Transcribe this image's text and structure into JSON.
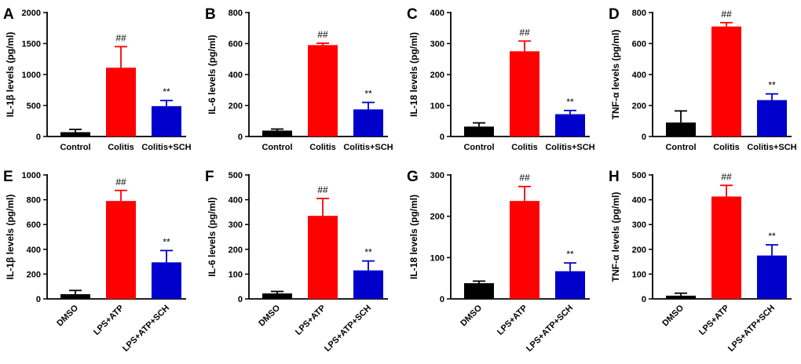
{
  "chart_data": [
    {
      "panel": "A",
      "type": "bar",
      "ylabel": "IL-1β levels (pg/ml)",
      "ylim": [
        0,
        2000
      ],
      "yticks": [
        "0",
        "500",
        "1000",
        "1500",
        "2000"
      ],
      "categories": [
        "Control",
        "Colitis",
        "Colitis+SCH"
      ],
      "values": [
        70,
        1110,
        490
      ],
      "errors": [
        45,
        340,
        90
      ],
      "annotations": [
        "",
        "##",
        "**"
      ],
      "colors": [
        "#000000",
        "#ff0000",
        "#0000cc"
      ],
      "rotate_labels": false
    },
    {
      "panel": "B",
      "type": "bar",
      "ylabel": "IL-6 levels (pg/ml)",
      "ylim": [
        0,
        800
      ],
      "yticks": [
        "0",
        "200",
        "400",
        "600",
        "800"
      ],
      "categories": [
        "Control",
        "Colitis",
        "Colitis+SCH"
      ],
      "values": [
        38,
        590,
        175
      ],
      "errors": [
        10,
        12,
        45
      ],
      "annotations": [
        "",
        "##",
        "**"
      ],
      "colors": [
        "#000000",
        "#ff0000",
        "#0000cc"
      ],
      "rotate_labels": false
    },
    {
      "panel": "C",
      "type": "bar",
      "ylabel": "IL-18 levels (pg/ml)",
      "ylim": [
        0,
        400
      ],
      "yticks": [
        "0",
        "100",
        "200",
        "300",
        "400"
      ],
      "categories": [
        "Control",
        "Colitis",
        "Colitis+SCH"
      ],
      "values": [
        32,
        275,
        72
      ],
      "errors": [
        12,
        33,
        12
      ],
      "annotations": [
        "",
        "##",
        "**"
      ],
      "colors": [
        "#000000",
        "#ff0000",
        "#0000cc"
      ],
      "rotate_labels": false
    },
    {
      "panel": "D",
      "type": "bar",
      "ylabel": "TNF-α levels (pg/ml)",
      "ylim": [
        0,
        800
      ],
      "yticks": [
        "0",
        "200",
        "400",
        "600",
        "800"
      ],
      "categories": [
        "Control",
        "Colitis",
        "Colitis+SCH"
      ],
      "values": [
        90,
        710,
        235
      ],
      "errors": [
        75,
        25,
        40
      ],
      "annotations": [
        "",
        "##",
        "**"
      ],
      "colors": [
        "#000000",
        "#ff0000",
        "#0000cc"
      ],
      "rotate_labels": false
    },
    {
      "panel": "E",
      "type": "bar",
      "ylabel": "IL-1β levels (pg/ml)",
      "ylim": [
        0,
        1000
      ],
      "yticks": [
        "0",
        "200",
        "400",
        "600",
        "800",
        "1000"
      ],
      "categories": [
        "DMSO",
        "LPS+ATP",
        "LPS+ATP+SCH"
      ],
      "values": [
        38,
        790,
        295
      ],
      "errors": [
        30,
        85,
        95
      ],
      "annotations": [
        "",
        "##",
        "**"
      ],
      "colors": [
        "#000000",
        "#ff0000",
        "#0000cc"
      ],
      "rotate_labels": true
    },
    {
      "panel": "F",
      "type": "bar",
      "ylabel": "IL-6 levels (pg/ml)",
      "ylim": [
        0,
        500
      ],
      "yticks": [
        "0",
        "100",
        "200",
        "300",
        "400",
        "500"
      ],
      "categories": [
        "DMSO",
        "LPS+ATP",
        "LPS+ATP+SCH"
      ],
      "values": [
        22,
        335,
        115
      ],
      "errors": [
        8,
        70,
        38
      ],
      "annotations": [
        "",
        "##",
        "**"
      ],
      "colors": [
        "#000000",
        "#ff0000",
        "#0000cc"
      ],
      "rotate_labels": true
    },
    {
      "panel": "G",
      "type": "bar",
      "ylabel": "IL-18 levels (pg/ml)",
      "ylim": [
        0,
        300
      ],
      "yticks": [
        "0",
        "100",
        "200",
        "300"
      ],
      "categories": [
        "DMSO",
        "LPS+ATP",
        "LPS+ATP+SCH"
      ],
      "values": [
        38,
        237,
        67
      ],
      "errors": [
        5,
        35,
        20
      ],
      "annotations": [
        "",
        "##",
        "**"
      ],
      "colors": [
        "#000000",
        "#ff0000",
        "#0000cc"
      ],
      "rotate_labels": true
    },
    {
      "panel": "H",
      "type": "bar",
      "ylabel": "TNF-α levels (pg/ml)",
      "ylim": [
        0,
        500
      ],
      "yticks": [
        "0",
        "100",
        "200",
        "300",
        "400",
        "500"
      ],
      "categories": [
        "DMSO",
        "LPS+ATP",
        "LPS+ATP+SCH"
      ],
      "values": [
        13,
        413,
        175
      ],
      "errors": [
        10,
        45,
        43
      ],
      "annotations": [
        "",
        "##",
        "**"
      ],
      "colors": [
        "#000000",
        "#ff0000",
        "#0000cc"
      ],
      "rotate_labels": true
    }
  ]
}
